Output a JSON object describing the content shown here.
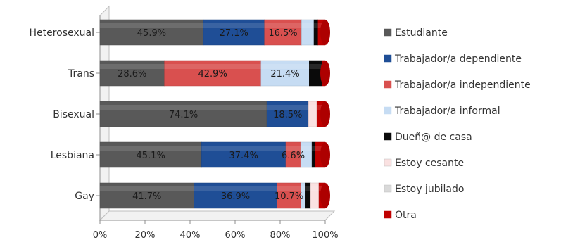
{
  "chart_data": {
    "type": "bar",
    "orientation": "horizontal",
    "stacked": "percent",
    "categories": [
      "Heterosexual",
      "Trans",
      "Bisexual",
      "Lesbiana",
      "Gay"
    ],
    "xlim": [
      0,
      100
    ],
    "xticks": [
      "0%",
      "20%",
      "40%",
      "60%",
      "80%",
      "100%"
    ],
    "grid": false,
    "legend_position": "right",
    "series": [
      {
        "name": "Estudiante",
        "color": "#595959",
        "values": [
          45.9,
          28.6,
          74.1,
          45.1,
          41.7
        ]
      },
      {
        "name": "Trabajador/a dependiente",
        "color": "#1F4E96",
        "values": [
          27.1,
          0,
          18.5,
          37.4,
          36.9
        ]
      },
      {
        "name": "Trabajador/a independiente",
        "color": "#D9504F",
        "values": [
          16.5,
          42.9,
          0,
          6.6,
          10.7
        ]
      },
      {
        "name": "Trabajador/a informal",
        "color": "#C6DCF3",
        "values": [
          5.5,
          21.4,
          0,
          5.0,
          2.0
        ]
      },
      {
        "name": "Dueñ@ de casa",
        "color": "#0A0A0A",
        "values": [
          1.8,
          5.7,
          0,
          1.5,
          2.2
        ]
      },
      {
        "name": "Estoy cesante",
        "color": "#FAE1E1",
        "values": [
          0,
          0,
          3.7,
          0,
          3.7
        ]
      },
      {
        "name": "Estoy jubilado",
        "color": "#D9D9D9",
        "values": [
          0,
          0,
          0,
          0,
          0
        ]
      },
      {
        "name": "Otra",
        "color": "#C00000",
        "values": [
          3.2,
          1.4,
          3.7,
          4.4,
          2.8
        ]
      }
    ],
    "data_labels": [
      [
        "45.9%",
        "27.1%",
        "16.5%",
        "",
        "",
        "",
        "",
        ""
      ],
      [
        "28.6%",
        "",
        "42.9%",
        "21.4%",
        "",
        "",
        "",
        ""
      ],
      [
        "74.1%",
        "18.5%",
        "",
        "",
        "",
        "",
        "",
        ""
      ],
      [
        "45.1%",
        "37.4%",
        "6.6%",
        "",
        "",
        "",
        "",
        ""
      ],
      [
        "41.7%",
        "36.9%",
        "10.7%",
        "",
        "",
        "",
        "",
        ""
      ]
    ]
  }
}
